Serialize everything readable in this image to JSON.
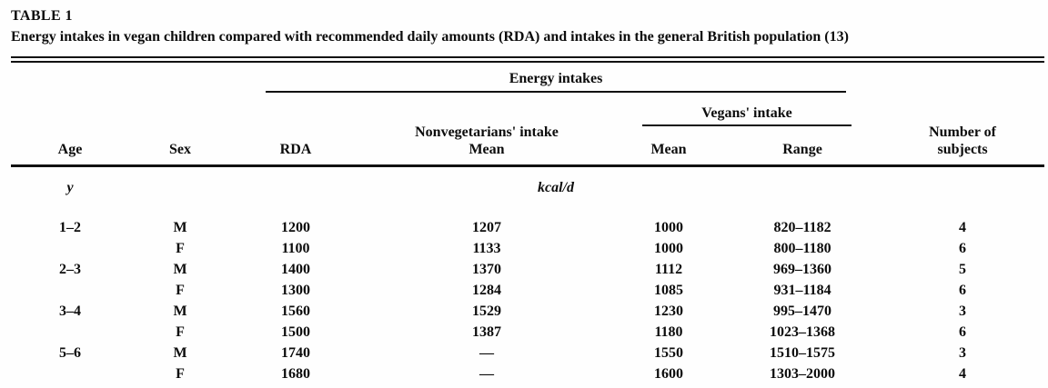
{
  "table_label": "TABLE 1",
  "caption": "Energy intakes in vegan children compared with recommended daily amounts (RDA) and intakes in the general British population (13)",
  "header": {
    "energy_group": "Energy intakes",
    "vegans_group": "Vegans' intake",
    "age": "Age",
    "sex": "Sex",
    "rda": "RDA",
    "nonveg_line1": "Nonvegetarians' intake",
    "nonveg_line2": "Mean",
    "vegan_mean": "Mean",
    "vegan_range": "Range",
    "subjects_line1": "Number of",
    "subjects_line2": "subjects"
  },
  "units": {
    "age_unit": "y",
    "energy_unit": "kcal/d"
  },
  "rows": [
    {
      "age": "1–2",
      "sex": "M",
      "rda": "1200",
      "nonveg_mean": "1207",
      "vegan_mean": "1000",
      "vegan_range": "820–1182",
      "n": "4"
    },
    {
      "age": "",
      "sex": "F",
      "rda": "1100",
      "nonveg_mean": "1133",
      "vegan_mean": "1000",
      "vegan_range": "800–1180",
      "n": "6"
    },
    {
      "age": "2–3",
      "sex": "M",
      "rda": "1400",
      "nonveg_mean": "1370",
      "vegan_mean": "1112",
      "vegan_range": "969–1360",
      "n": "5"
    },
    {
      "age": "",
      "sex": "F",
      "rda": "1300",
      "nonveg_mean": "1284",
      "vegan_mean": "1085",
      "vegan_range": "931–1184",
      "n": "6"
    },
    {
      "age": "3–4",
      "sex": "M",
      "rda": "1560",
      "nonveg_mean": "1529",
      "vegan_mean": "1230",
      "vegan_range": "995–1470",
      "n": "3"
    },
    {
      "age": "",
      "sex": "F",
      "rda": "1500",
      "nonveg_mean": "1387",
      "vegan_mean": "1180",
      "vegan_range": "1023–1368",
      "n": "6"
    },
    {
      "age": "5–6",
      "sex": "M",
      "rda": "1740",
      "nonveg_mean": "—",
      "vegan_mean": "1550",
      "vegan_range": "1510–1575",
      "n": "3"
    },
    {
      "age": "",
      "sex": "F",
      "rda": "1680",
      "nonveg_mean": "—",
      "vegan_mean": "1600",
      "vegan_range": "1303–2000",
      "n": "4"
    }
  ],
  "colors": {
    "ink": "#0c0c0c",
    "paper": "#fefefe"
  }
}
